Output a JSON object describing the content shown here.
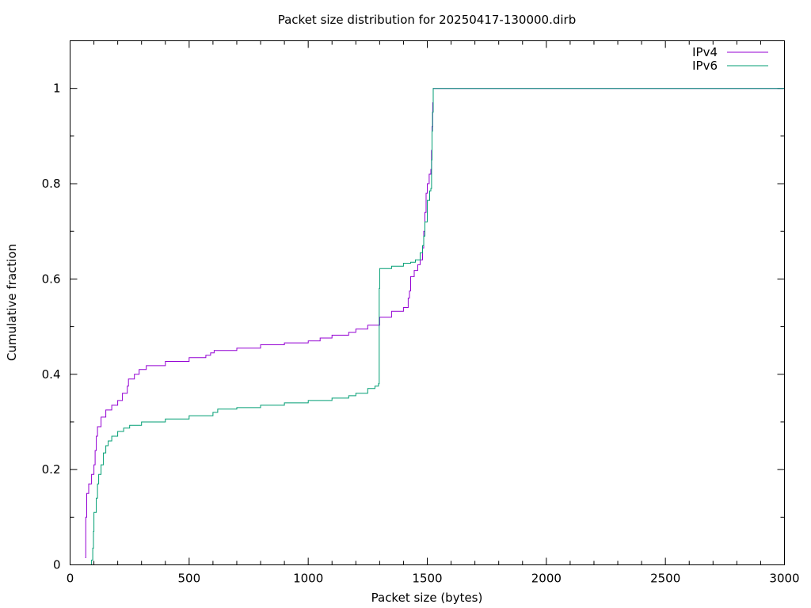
{
  "chart_data": {
    "type": "line",
    "title": "Packet size distribution for 20250417-130000.dirb",
    "xlabel": "Packet size (bytes)",
    "ylabel": "Cumulative fraction",
    "xlim": [
      0,
      3000
    ],
    "ylim": [
      0,
      1.1
    ],
    "xticks": [
      0,
      500,
      1000,
      1500,
      2000,
      2500,
      3000
    ],
    "xtick_labels": [
      "0",
      "500",
      "1000",
      "1500",
      "2000",
      "2500",
      "3000"
    ],
    "yticks": [
      0,
      0.2,
      0.4,
      0.6,
      0.8,
      1
    ],
    "ytick_labels": [
      "0",
      "0.2",
      "0.4",
      "0.6",
      "0.8",
      "1"
    ],
    "xminor_step": 100,
    "yminor_step": 0.1,
    "grid": false,
    "legend_position": "top-right",
    "series": [
      {
        "name": "IPv4",
        "color": "#9400d3",
        "points": [
          [
            64,
            0.015
          ],
          [
            66,
            0.1
          ],
          [
            70,
            0.15
          ],
          [
            78,
            0.17
          ],
          [
            90,
            0.19
          ],
          [
            100,
            0.21
          ],
          [
            105,
            0.24
          ],
          [
            110,
            0.27
          ],
          [
            115,
            0.29
          ],
          [
            130,
            0.31
          ],
          [
            150,
            0.325
          ],
          [
            175,
            0.335
          ],
          [
            200,
            0.345
          ],
          [
            220,
            0.36
          ],
          [
            240,
            0.375
          ],
          [
            245,
            0.39
          ],
          [
            270,
            0.4
          ],
          [
            290,
            0.41
          ],
          [
            320,
            0.418
          ],
          [
            400,
            0.427
          ],
          [
            500,
            0.435
          ],
          [
            570,
            0.44
          ],
          [
            590,
            0.445
          ],
          [
            605,
            0.45
          ],
          [
            700,
            0.455
          ],
          [
            800,
            0.462
          ],
          [
            900,
            0.466
          ],
          [
            1000,
            0.47
          ],
          [
            1050,
            0.476
          ],
          [
            1100,
            0.482
          ],
          [
            1170,
            0.488
          ],
          [
            1200,
            0.495
          ],
          [
            1250,
            0.503
          ],
          [
            1300,
            0.52
          ],
          [
            1350,
            0.532
          ],
          [
            1400,
            0.54
          ],
          [
            1420,
            0.56
          ],
          [
            1425,
            0.575
          ],
          [
            1430,
            0.605
          ],
          [
            1445,
            0.618
          ],
          [
            1460,
            0.63
          ],
          [
            1470,
            0.64
          ],
          [
            1480,
            0.665
          ],
          [
            1485,
            0.7
          ],
          [
            1490,
            0.74
          ],
          [
            1495,
            0.78
          ],
          [
            1500,
            0.8
          ],
          [
            1508,
            0.82
          ],
          [
            1515,
            0.83
          ],
          [
            1518,
            0.87
          ],
          [
            1520,
            0.92
          ],
          [
            1523,
            0.97
          ],
          [
            1525,
            1.0
          ],
          [
            3000,
            1.0
          ]
        ]
      },
      {
        "name": "IPv6",
        "color": "#009e73",
        "points": [
          [
            86,
            0.0
          ],
          [
            90,
            0.01
          ],
          [
            95,
            0.035
          ],
          [
            98,
            0.07
          ],
          [
            100,
            0.11
          ],
          [
            110,
            0.14
          ],
          [
            115,
            0.17
          ],
          [
            120,
            0.19
          ],
          [
            130,
            0.21
          ],
          [
            140,
            0.235
          ],
          [
            150,
            0.25
          ],
          [
            160,
            0.26
          ],
          [
            175,
            0.27
          ],
          [
            200,
            0.28
          ],
          [
            225,
            0.287
          ],
          [
            250,
            0.293
          ],
          [
            300,
            0.3
          ],
          [
            400,
            0.306
          ],
          [
            500,
            0.313
          ],
          [
            600,
            0.32
          ],
          [
            620,
            0.327
          ],
          [
            700,
            0.33
          ],
          [
            800,
            0.335
          ],
          [
            900,
            0.34
          ],
          [
            1000,
            0.345
          ],
          [
            1100,
            0.35
          ],
          [
            1170,
            0.355
          ],
          [
            1200,
            0.36
          ],
          [
            1250,
            0.37
          ],
          [
            1280,
            0.375
          ],
          [
            1295,
            0.38
          ],
          [
            1298,
            0.58
          ],
          [
            1300,
            0.622
          ],
          [
            1350,
            0.627
          ],
          [
            1400,
            0.633
          ],
          [
            1430,
            0.635
          ],
          [
            1450,
            0.64
          ],
          [
            1470,
            0.655
          ],
          [
            1480,
            0.67
          ],
          [
            1485,
            0.69
          ],
          [
            1490,
            0.72
          ],
          [
            1500,
            0.765
          ],
          [
            1510,
            0.785
          ],
          [
            1515,
            0.79
          ],
          [
            1518,
            0.85
          ],
          [
            1520,
            0.91
          ],
          [
            1522,
            0.95
          ],
          [
            1525,
            1.0
          ],
          [
            3000,
            1.0
          ]
        ]
      }
    ]
  }
}
